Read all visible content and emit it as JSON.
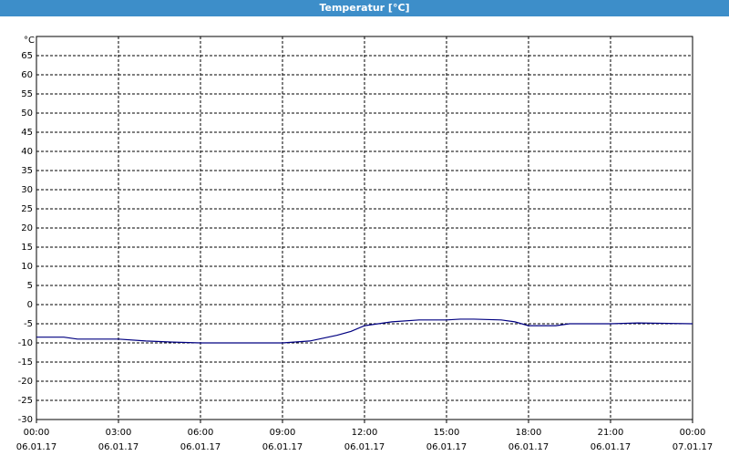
{
  "chart_data": {
    "type": "line",
    "title": "Temperatur [°C]",
    "y_unit": "°C",
    "x": [
      0,
      1,
      1.5,
      3,
      4,
      5,
      6,
      7,
      8,
      9,
      10,
      11,
      11.5,
      12,
      12.5,
      13,
      14,
      15,
      15.5,
      16,
      17,
      17.5,
      18,
      19,
      19.5,
      21,
      22,
      24
    ],
    "series": [
      {
        "color": "#000080",
        "values": [
          -8.5,
          -8.5,
          -9,
          -9,
          -9.5,
          -9.8,
          -10,
          -10,
          -10,
          -10,
          -9.5,
          -8,
          -7,
          -5.5,
          -5,
          -4.5,
          -4,
          -4,
          -3.8,
          -3.8,
          -4,
          -4.5,
          -5.5,
          -5.5,
          -5,
          -5,
          -4.8,
          -5
        ]
      }
    ],
    "xlim": [
      0,
      24
    ],
    "xticks": [
      {
        "value": 0,
        "label": "00:00",
        "date": "06.01.17"
      },
      {
        "value": 3,
        "label": "03:00",
        "date": "06.01.17"
      },
      {
        "value": 6,
        "label": "06:00",
        "date": "06.01.17"
      },
      {
        "value": 9,
        "label": "09:00",
        "date": "06.01.17"
      },
      {
        "value": 12,
        "label": "12:00",
        "date": "06.01.17"
      },
      {
        "value": 15,
        "label": "15:00",
        "date": "06.01.17"
      },
      {
        "value": 18,
        "label": "18:00",
        "date": "06.01.17"
      },
      {
        "value": 21,
        "label": "21:00",
        "date": "06.01.17"
      },
      {
        "value": 24,
        "label": "00:00",
        "date": "07.01.17"
      }
    ],
    "ylim": [
      -30,
      70
    ],
    "yticks": [
      -30,
      -25,
      -20,
      -15,
      -10,
      -5,
      0,
      5,
      10,
      15,
      20,
      25,
      30,
      35,
      40,
      45,
      50,
      55,
      60,
      65
    ],
    "grid": true
  }
}
